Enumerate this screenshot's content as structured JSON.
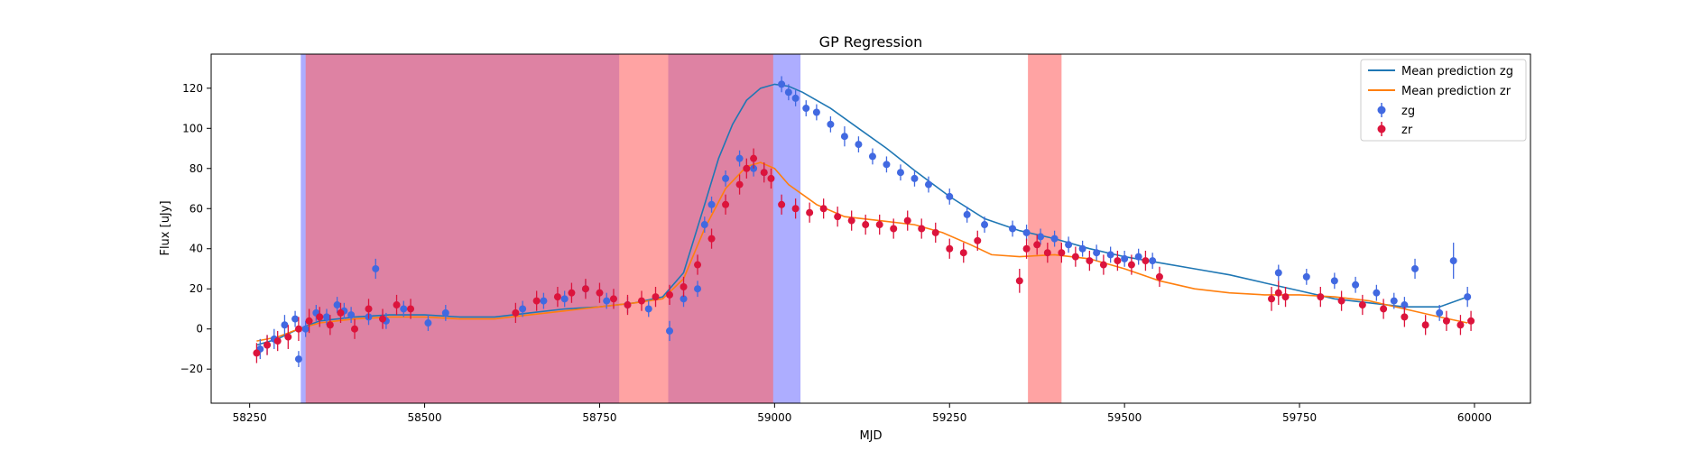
{
  "chart_data": {
    "type": "scatter",
    "title": "GP Regression",
    "xlabel": "MJD",
    "ylabel": "Flux [uJy]",
    "xlim": [
      58195,
      60080
    ],
    "ylim": [
      -37,
      137
    ],
    "xticks": [
      58250,
      58500,
      58750,
      59000,
      59250,
      59500,
      59750,
      60000
    ],
    "yticks": [
      -20,
      0,
      20,
      40,
      60,
      80,
      100,
      120
    ],
    "grid": false,
    "legend_position": "top-right",
    "legend": [
      {
        "label": "Mean prediction zg",
        "kind": "line",
        "color": "#1f77b4"
      },
      {
        "label": "Mean prediction zr",
        "kind": "line",
        "color": "#ff7f0e"
      },
      {
        "label": "zg",
        "kind": "errorbar",
        "color": "#4169e1"
      },
      {
        "label": "zr",
        "kind": "errorbar",
        "color": "#dc143c"
      }
    ],
    "shaded_regions": [
      {
        "band": "zg",
        "x0": 58323,
        "x1": 58778,
        "color": "#7777ff",
        "opacity": 0.6
      },
      {
        "band": "zg",
        "x0": 58848,
        "x1": 59037,
        "color": "#7777ff",
        "opacity": 0.6
      },
      {
        "band": "zr",
        "x0": 58330,
        "x1": 58998,
        "color": "#ff6666",
        "opacity": 0.6
      },
      {
        "band": "zr",
        "x0": 59362,
        "x1": 59410,
        "color": "#ff6666",
        "opacity": 0.6
      }
    ],
    "series": [
      {
        "name": "Mean prediction zg",
        "kind": "line",
        "color": "#1f77b4",
        "x": [
          58260,
          58290,
          58320,
          58350,
          58400,
          58450,
          58500,
          58550,
          58600,
          58650,
          58700,
          58750,
          58800,
          58840,
          58870,
          58900,
          58920,
          58940,
          58960,
          58980,
          59000,
          59020,
          59040,
          59080,
          59120,
          59160,
          59200,
          59250,
          59300,
          59350,
          59400,
          59450,
          59500,
          59550,
          59600,
          59650,
          59700,
          59750,
          59800,
          59850,
          59900,
          59950,
          59990
        ],
        "y": [
          -8,
          -5,
          0,
          4,
          6,
          7,
          7,
          6,
          6,
          8,
          10,
          11,
          13,
          16,
          28,
          62,
          85,
          102,
          114,
          120,
          122,
          121,
          118,
          110,
          100,
          90,
          79,
          66,
          55,
          49,
          45,
          40,
          36,
          33,
          30,
          27,
          23,
          19,
          15,
          13,
          11,
          11,
          16
        ]
      },
      {
        "name": "Mean prediction zr",
        "kind": "line",
        "color": "#ff7f0e",
        "x": [
          58260,
          58290,
          58320,
          58350,
          58400,
          58450,
          58500,
          58550,
          58600,
          58650,
          58700,
          58750,
          58800,
          58840,
          58870,
          58900,
          58930,
          58960,
          58980,
          59000,
          59020,
          59060,
          59100,
          59150,
          59200,
          59240,
          59280,
          59310,
          59350,
          59400,
          59450,
          59500,
          59550,
          59600,
          59650,
          59700,
          59750,
          59800,
          59850,
          59900,
          59950,
          59990
        ],
        "y": [
          -6,
          -4,
          0,
          3,
          5,
          6,
          6,
          5,
          5,
          7,
          9,
          11,
          13,
          15,
          25,
          50,
          70,
          81,
          83,
          80,
          72,
          62,
          56,
          54,
          52,
          48,
          42,
          37,
          36,
          37,
          35,
          30,
          24,
          20,
          18,
          17,
          17,
          16,
          14,
          10,
          6,
          3
        ]
      },
      {
        "name": "zg",
        "kind": "errorbar",
        "color": "#4169e1",
        "x": [
          58265,
          58275,
          58285,
          58300,
          58315,
          58320,
          58330,
          58345,
          58360,
          58375,
          58385,
          58395,
          58420,
          58430,
          58445,
          58470,
          58505,
          58530,
          58640,
          58670,
          58700,
          58730,
          58760,
          58790,
          58820,
          58850,
          58870,
          58890,
          58900,
          58910,
          58930,
          58950,
          58970,
          58985,
          59010,
          59020,
          59030,
          59045,
          59060,
          59080,
          59100,
          59120,
          59140,
          59160,
          59180,
          59200,
          59220,
          59250,
          59275,
          59300,
          59340,
          59360,
          59380,
          59400,
          59420,
          59440,
          59460,
          59480,
          59500,
          59520,
          59540,
          59720,
          59760,
          59800,
          59830,
          59860,
          59885,
          59900,
          59915,
          59950,
          59970,
          59990
        ],
        "y": [
          -10,
          -8,
          -5,
          2,
          5,
          -15,
          0,
          8,
          6,
          12,
          9,
          7,
          6,
          30,
          4,
          10,
          3,
          8,
          10,
          14,
          15,
          20,
          14,
          12,
          10,
          -1,
          15,
          20,
          52,
          62,
          75,
          85,
          80,
          78,
          122,
          118,
          115,
          110,
          108,
          102,
          96,
          92,
          86,
          82,
          78,
          75,
          72,
          66,
          57,
          52,
          50,
          48,
          46,
          45,
          42,
          40,
          38,
          37,
          35,
          36,
          34,
          28,
          26,
          24,
          22,
          18,
          14,
          12,
          30,
          8,
          34,
          16
        ],
        "err": [
          5,
          5,
          5,
          5,
          4,
          4,
          4,
          4,
          4,
          4,
          4,
          4,
          4,
          5,
          4,
          4,
          4,
          4,
          4,
          4,
          4,
          4,
          4,
          4,
          4,
          5,
          4,
          4,
          4,
          4,
          4,
          4,
          4,
          4,
          4,
          4,
          4,
          4,
          4,
          4,
          5,
          4,
          4,
          4,
          4,
          4,
          4,
          4,
          4,
          4,
          4,
          4,
          4,
          4,
          4,
          4,
          4,
          4,
          4,
          4,
          4,
          4,
          4,
          4,
          4,
          4,
          4,
          4,
          5,
          4,
          9,
          5
        ]
      },
      {
        "name": "zr",
        "kind": "errorbar",
        "color": "#dc143c",
        "x": [
          58260,
          58275,
          58290,
          58305,
          58320,
          58335,
          58350,
          58365,
          58380,
          58400,
          58420,
          58440,
          58460,
          58480,
          58630,
          58660,
          58690,
          58710,
          58730,
          58750,
          58770,
          58790,
          58810,
          58830,
          58850,
          58870,
          58890,
          58910,
          58930,
          58950,
          58960,
          58970,
          58985,
          58995,
          59010,
          59030,
          59050,
          59070,
          59090,
          59110,
          59130,
          59150,
          59170,
          59190,
          59210,
          59230,
          59250,
          59270,
          59290,
          59350,
          59360,
          59375,
          59390,
          59410,
          59430,
          59450,
          59470,
          59490,
          59510,
          59530,
          59550,
          59710,
          59720,
          59730,
          59780,
          59810,
          59840,
          59870,
          59900,
          59930,
          59960,
          59980,
          59995
        ],
        "y": [
          -12,
          -8,
          -6,
          -4,
          0,
          4,
          6,
          2,
          8,
          0,
          10,
          5,
          12,
          10,
          8,
          14,
          16,
          18,
          20,
          18,
          15,
          12,
          14,
          16,
          17,
          21,
          32,
          45,
          62,
          72,
          80,
          85,
          78,
          75,
          62,
          60,
          58,
          60,
          56,
          54,
          52,
          52,
          50,
          54,
          50,
          48,
          40,
          38,
          44,
          24,
          40,
          42,
          38,
          38,
          36,
          34,
          32,
          34,
          32,
          34,
          26,
          15,
          18,
          16,
          16,
          14,
          12,
          10,
          6,
          2,
          4,
          2,
          4
        ],
        "err": [
          5,
          5,
          5,
          6,
          6,
          6,
          5,
          5,
          5,
          5,
          5,
          5,
          5,
          5,
          5,
          5,
          5,
          5,
          5,
          5,
          5,
          5,
          5,
          5,
          5,
          5,
          5,
          5,
          5,
          5,
          5,
          5,
          5,
          5,
          5,
          5,
          5,
          5,
          5,
          5,
          5,
          5,
          5,
          5,
          5,
          5,
          5,
          5,
          5,
          6,
          5,
          5,
          5,
          5,
          5,
          5,
          5,
          5,
          5,
          5,
          5,
          6,
          6,
          5,
          5,
          5,
          5,
          5,
          5,
          5,
          5,
          5,
          5
        ]
      }
    ]
  }
}
